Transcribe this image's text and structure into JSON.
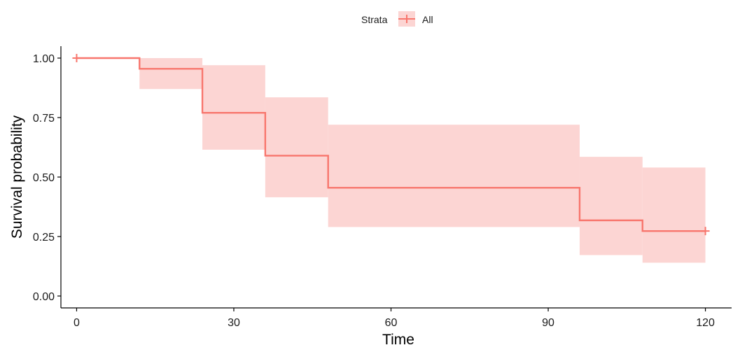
{
  "chart_data": {
    "type": "line",
    "subtype": "kaplan-meier-step",
    "xlabel": "Time",
    "ylabel": "Survival probability",
    "xlim": [
      -3,
      125
    ],
    "ylim": [
      -0.05,
      1.05
    ],
    "x_ticks": [
      0,
      30,
      60,
      90,
      120
    ],
    "x_tick_labels": [
      "0",
      "30",
      "60",
      "90",
      "120"
    ],
    "y_ticks": [
      0,
      0.25,
      0.5,
      0.75,
      1.0
    ],
    "y_tick_labels": [
      "0.00",
      "0.25",
      "0.50",
      "0.75",
      "1.00"
    ],
    "grid": false,
    "legend": {
      "placement": "top",
      "title": "Strata",
      "entries": [
        "All"
      ]
    },
    "colors": {
      "line": "#f8766d",
      "band": "#fcd5d3"
    },
    "series": [
      {
        "name": "All",
        "steps": [
          {
            "x0": 0,
            "x1": 12,
            "y": 1.0,
            "lower": 1.0,
            "upper": 1.0
          },
          {
            "x0": 12,
            "x1": 24,
            "y": 0.955,
            "lower": 0.87,
            "upper": 1.0
          },
          {
            "x0": 24,
            "x1": 36,
            "y": 0.77,
            "lower": 0.615,
            "upper": 0.97
          },
          {
            "x0": 36,
            "x1": 48,
            "y": 0.59,
            "lower": 0.415,
            "upper": 0.835
          },
          {
            "x0": 48,
            "x1": 96,
            "y": 0.455,
            "lower": 0.29,
            "upper": 0.72
          },
          {
            "x0": 96,
            "x1": 108,
            "y": 0.318,
            "lower": 0.172,
            "upper": 0.585
          },
          {
            "x0": 108,
            "x1": 120,
            "y": 0.273,
            "lower": 0.14,
            "upper": 0.54
          }
        ],
        "censor_points": [
          {
            "x": 0,
            "y": 1.0
          },
          {
            "x": 120,
            "y": 0.273
          }
        ]
      }
    ]
  }
}
